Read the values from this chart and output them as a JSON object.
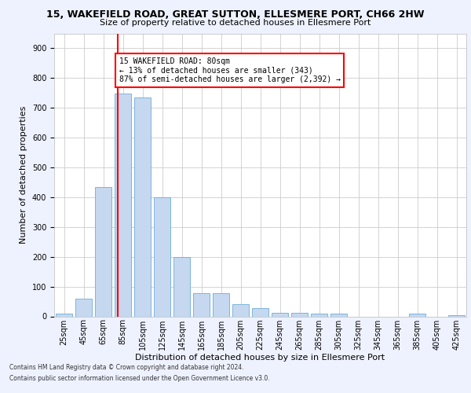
{
  "title1": "15, WAKEFIELD ROAD, GREAT SUTTON, ELLESMERE PORT, CH66 2HW",
  "title2": "Size of property relative to detached houses in Ellesmere Port",
  "xlabel": "Distribution of detached houses by size in Ellesmere Port",
  "ylabel": "Number of detached properties",
  "bar_values": [
    10,
    60,
    435,
    748,
    735,
    400,
    200,
    78,
    78,
    42,
    28,
    12,
    12,
    10,
    8,
    0,
    0,
    0,
    8,
    0,
    5
  ],
  "categories": [
    "25sqm",
    "45sqm",
    "65sqm",
    "85sqm",
    "105sqm",
    "125sqm",
    "145sqm",
    "165sqm",
    "185sqm",
    "205sqm",
    "225sqm",
    "245sqm",
    "265sqm",
    "285sqm",
    "305sqm",
    "325sqm",
    "345sqm",
    "365sqm",
    "385sqm",
    "405sqm",
    "425sqm"
  ],
  "bar_color": "#C5D8F0",
  "bar_edgecolor": "#6BAED6",
  "vline_color": "red",
  "annotation_text": "15 WAKEFIELD ROAD: 80sqm\n← 13% of detached houses are smaller (343)\n87% of semi-detached houses are larger (2,392) →",
  "annotation_box_color": "white",
  "annotation_box_edgecolor": "red",
  "ylim_max": 950,
  "footnote1": "Contains HM Land Registry data © Crown copyright and database right 2024.",
  "footnote2": "Contains public sector information licensed under the Open Government Licence v3.0.",
  "bg_color": "#EEF2FF",
  "plot_bg_color": "white",
  "grid_color": "#CCCCCC",
  "title1_fontsize": 9.0,
  "title2_fontsize": 8.0,
  "ylabel_fontsize": 8.0,
  "xlabel_fontsize": 8.0,
  "tick_fontsize": 7.0,
  "footnote_fontsize": 5.5
}
